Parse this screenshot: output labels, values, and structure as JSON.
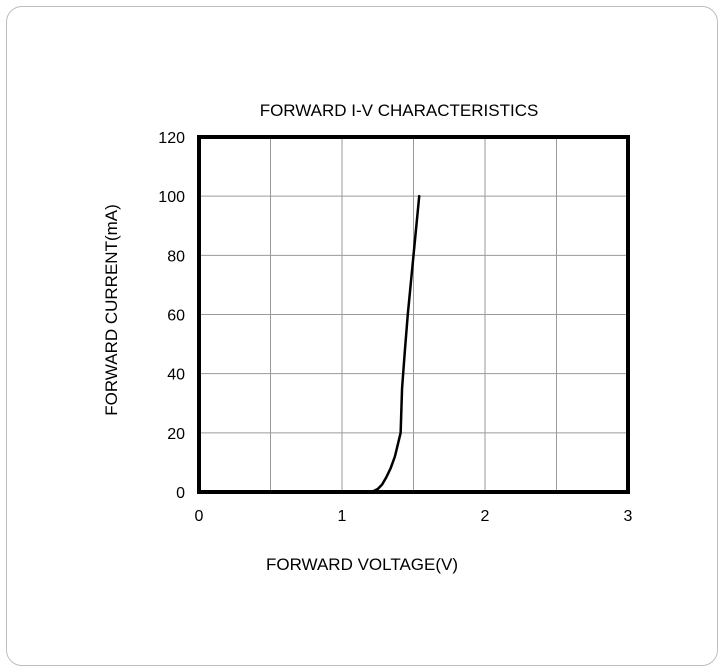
{
  "chart_data": {
    "type": "line",
    "title": "FORWARD I-V CHARACTERISTICS",
    "xlabel": "FORWARD VOLTAGE(V)",
    "ylabel": "FORWARD CURRENT(mA)",
    "xlim": [
      0,
      3
    ],
    "ylim": [
      0,
      120
    ],
    "xticks": [
      0,
      0.5,
      1,
      1.5,
      2,
      2.5,
      3
    ],
    "xtick_labels": [
      "0",
      "",
      "1",
      "",
      "2",
      "",
      "3"
    ],
    "yticks": [
      0,
      20,
      40,
      60,
      80,
      100,
      120
    ],
    "ytick_labels": [
      "0",
      "20",
      "40",
      "60",
      "80",
      "100",
      "120"
    ],
    "grid": true,
    "legend": "none",
    "series": [
      {
        "color": "#000000",
        "x": [
          1.18,
          1.22,
          1.25,
          1.28,
          1.31,
          1.34,
          1.37,
          1.39,
          1.41,
          1.42,
          1.44,
          1.46,
          1.48,
          1.5,
          1.52,
          1.54
        ],
        "y": [
          0,
          0.3,
          1,
          2.5,
          5,
          8,
          12,
          16,
          20,
          35,
          48,
          60,
          70,
          80,
          90,
          100
        ]
      }
    ]
  }
}
